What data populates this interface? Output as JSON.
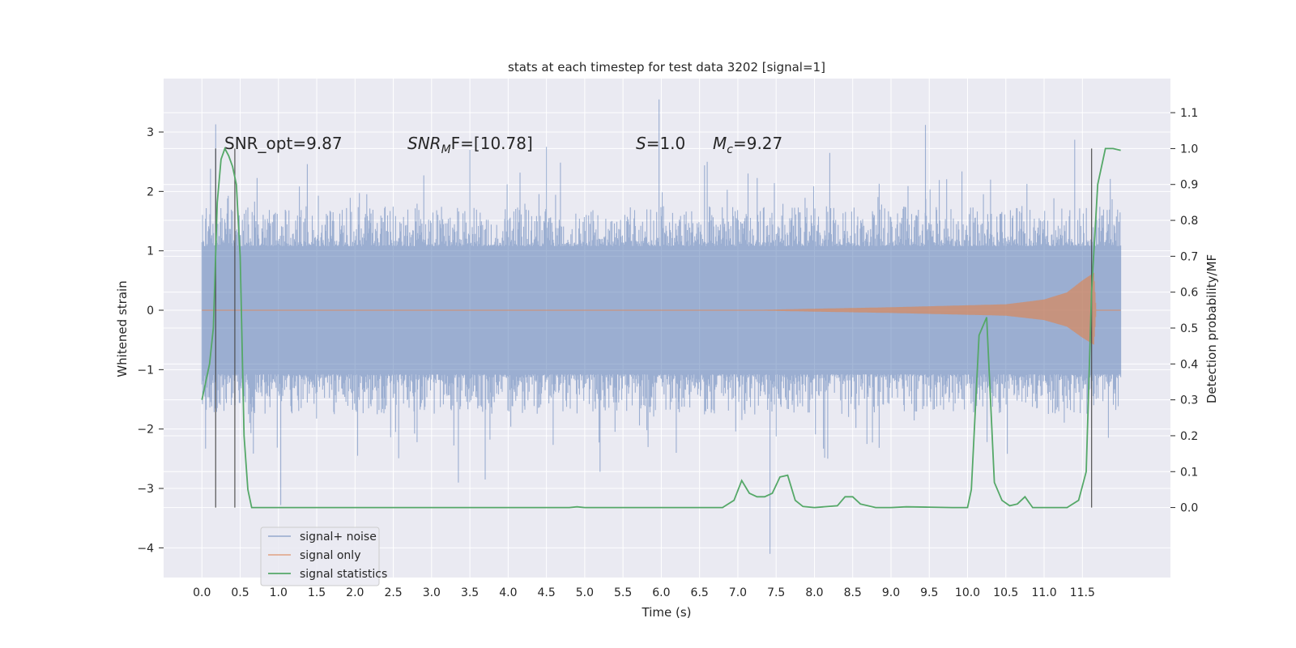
{
  "chart_data": {
    "type": "line",
    "title": "stats at each timestep for test data 3202 [signal=1]",
    "xlabel": "Time (s)",
    "ylabel_left": "Whitened strain",
    "ylabel_right": "Detection probability/MF",
    "xlim": [
      -0.5,
      12.65
    ],
    "ylim_left": [
      -4.5,
      3.9
    ],
    "ylim_right": [
      -0.195,
      1.195
    ],
    "x_ticks": [
      "0.0",
      "0.5",
      "1.0",
      "1.5",
      "2.0",
      "2.5",
      "3.0",
      "3.5",
      "4.0",
      "4.5",
      "5.0",
      "5.5",
      "6.0",
      "6.5",
      "7.0",
      "7.5",
      "8.0",
      "8.5",
      "9.0",
      "9.5",
      "10.0",
      "10.5",
      "11.0",
      "11.5"
    ],
    "y_ticks_left": [
      "3",
      "2",
      "1",
      "0",
      "−1",
      "−2",
      "−3",
      "−4"
    ],
    "y_ticks_right": [
      "1.1",
      "1.0",
      "0.9",
      "0.8",
      "0.7",
      "0.6",
      "0.5",
      "0.4",
      "0.3",
      "0.2",
      "0.1",
      "0.0"
    ],
    "grid": true,
    "legend_position": "lower left",
    "annotations": {
      "snr_opt": "SNR_opt=9.87",
      "snr_mf_prefix": "SNR",
      "snr_mf_sub": "M",
      "snr_mf_suffix": "F=[10.78]",
      "s_prefix": "S",
      "s_value": "=1.0",
      "mc_prefix": "M",
      "mc_sub": "c",
      "mc_value": "=9.27"
    },
    "series": [
      {
        "name": "signal+ noise",
        "color": "#4c72b0",
        "x_range": [
          0.0,
          12.0
        ],
        "typical_envelope": [
          -1.5,
          1.5
        ],
        "peaks": [
          {
            "x": 0.18,
            "y": 3.13
          },
          {
            "x": 1.03,
            "y": -3.28
          },
          {
            "x": 5.97,
            "y": 3.55
          },
          {
            "x": 9.45,
            "y": 3.12
          },
          {
            "x": 7.42,
            "y": -4.1
          },
          {
            "x": 11.4,
            "y": 2.87
          },
          {
            "x": 4.5,
            "y": 2.75
          },
          {
            "x": 3.35,
            "y": -2.9
          },
          {
            "x": 3.7,
            "y": -2.85
          },
          {
            "x": 3.5,
            "y": 2.7
          },
          {
            "x": 5.2,
            "y": -2.72
          },
          {
            "x": 8.2,
            "y": 2.65
          },
          {
            "x": 6.6,
            "y": 2.5
          },
          {
            "x": 10.3,
            "y": 2.2
          }
        ]
      },
      {
        "name": "signal only",
        "color": "#dd8452",
        "x_range": [
          0.0,
          12.0
        ],
        "envelope": [
          [
            0.0,
            0.0
          ],
          [
            7.0,
            0.0
          ],
          [
            9.0,
            0.05
          ],
          [
            10.5,
            0.1
          ],
          [
            11.0,
            0.18
          ],
          [
            11.3,
            0.3
          ],
          [
            11.5,
            0.5
          ],
          [
            11.65,
            0.63
          ],
          [
            11.68,
            0.0
          ]
        ]
      },
      {
        "name": "signal statistics",
        "color": "#55a868",
        "x": [
          0.0,
          0.05,
          0.1,
          0.15,
          0.2,
          0.25,
          0.3,
          0.35,
          0.4,
          0.45,
          0.5,
          0.55,
          0.6,
          0.65,
          0.7,
          0.8,
          4.8,
          4.9,
          5.0,
          5.1,
          5.5,
          6.8,
          6.95,
          7.05,
          7.15,
          7.25,
          7.35,
          7.45,
          7.55,
          7.65,
          7.75,
          7.85,
          8.0,
          8.3,
          8.4,
          8.5,
          8.6,
          8.8,
          9.0,
          9.2,
          9.5,
          9.8,
          10.0,
          10.05,
          10.15,
          10.25,
          10.35,
          10.45,
          10.55,
          10.65,
          10.75,
          10.85,
          11.3,
          11.45,
          11.55,
          11.62,
          11.7,
          11.8,
          11.9,
          12.0
        ],
        "y": [
          0.3,
          0.35,
          0.4,
          0.5,
          0.85,
          0.97,
          1.0,
          0.98,
          0.95,
          0.9,
          0.7,
          0.2,
          0.05,
          0.0,
          0.0,
          0.0,
          0.0,
          0.002,
          0.0,
          0.0,
          0.0,
          0.0,
          0.02,
          0.075,
          0.04,
          0.03,
          0.03,
          0.04,
          0.085,
          0.09,
          0.02,
          0.003,
          0.0,
          0.005,
          0.03,
          0.03,
          0.01,
          0.0,
          0.0,
          0.002,
          0.001,
          0.0,
          0.0,
          0.05,
          0.48,
          0.53,
          0.07,
          0.02,
          0.005,
          0.01,
          0.03,
          0.0,
          0.0,
          0.02,
          0.1,
          0.6,
          0.9,
          1.0,
          1.0,
          0.995
        ]
      }
    ],
    "vertical_markers_x": [
      0.18,
      0.43,
      11.62
    ]
  },
  "legend": [
    {
      "label": "signal+ noise",
      "color": "#4c72b0"
    },
    {
      "label": "signal only",
      "color": "#dd8452"
    },
    {
      "label": "signal statistics",
      "color": "#55a868"
    }
  ]
}
